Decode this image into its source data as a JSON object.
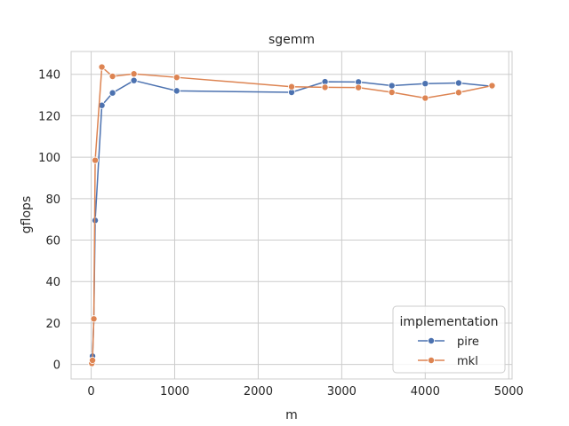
{
  "chart_data": {
    "type": "line",
    "title": "sgemm",
    "xlabel": "m",
    "ylabel": "gflops",
    "xlim": [
      -240,
      5040
    ],
    "ylim": [
      -7,
      151
    ],
    "xticks": [
      0,
      1000,
      2000,
      3000,
      4000,
      5000
    ],
    "yticks": [
      0,
      20,
      40,
      60,
      80,
      100,
      120,
      140
    ],
    "grid": true,
    "legend": {
      "title": "implementation",
      "placement": "lower-right"
    },
    "series": [
      {
        "name": "pire",
        "color": "#4c72b0",
        "x": [
          8,
          16,
          32,
          48,
          128,
          256,
          512,
          1024,
          2400,
          2800,
          3200,
          3600,
          4000,
          4400,
          4800
        ],
        "y": [
          0.2,
          4,
          22,
          69.5,
          125,
          131,
          137,
          132,
          131.3,
          136.4,
          136.3,
          134.5,
          135.5,
          135.8,
          134.2
        ]
      },
      {
        "name": "mkl",
        "color": "#dd8452",
        "x": [
          8,
          16,
          32,
          48,
          128,
          256,
          512,
          1024,
          2400,
          2800,
          3200,
          3600,
          4000,
          4400,
          4800
        ],
        "y": [
          0.5,
          2,
          22,
          98.5,
          143.5,
          139,
          140.2,
          138.5,
          134,
          133.7,
          133.6,
          131.3,
          128.5,
          131.2,
          134.5
        ]
      }
    ]
  }
}
